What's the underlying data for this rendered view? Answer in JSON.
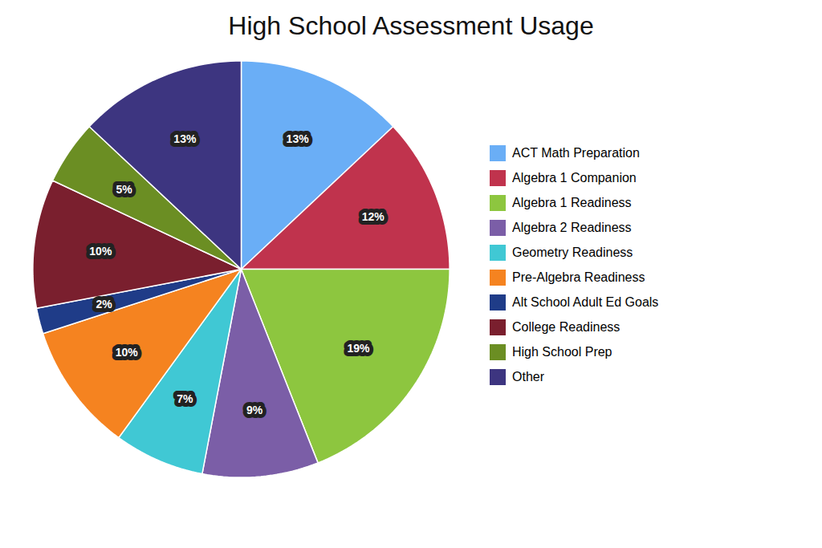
{
  "chart_data": {
    "type": "pie",
    "title": "High School Assessment Usage",
    "categories": [
      "ACT Math Preparation",
      "Algebra 1 Companion",
      "Algebra 1 Readiness",
      "Algebra 2 Readiness",
      "Geometry Readiness",
      "Pre-Algebra Readiness",
      "Alt School Adult Ed Goals",
      "College Readiness",
      "High School Prep",
      "Other"
    ],
    "values": [
      13,
      12,
      19,
      9,
      7,
      10,
      2,
      10,
      5,
      13
    ],
    "value_labels": [
      "13%",
      "12%",
      "19%",
      "9%",
      "7%",
      "10%",
      "2%",
      "10%",
      "5%",
      "13%"
    ],
    "colors": [
      "#6AAEF6",
      "#C0334D",
      "#8DC63F",
      "#7B5EA7",
      "#40C8D4",
      "#F58320",
      "#1F3C88",
      "#7A1F2E",
      "#6B8E23",
      "#3D3580"
    ],
    "data_labels": true,
    "legend": "right"
  }
}
